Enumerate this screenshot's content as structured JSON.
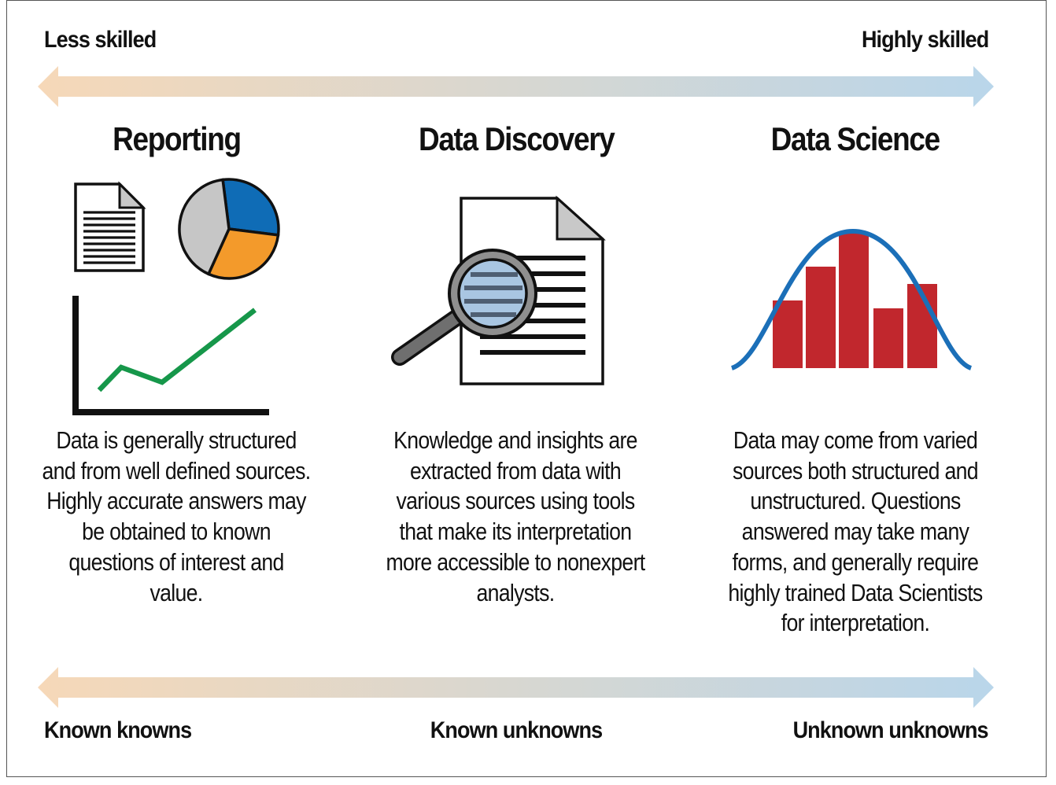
{
  "top_scale": {
    "left_label": "Less skilled",
    "right_label": "Highly skilled"
  },
  "bottom_scale": {
    "left_label": "Known knowns",
    "center_label": "Known unknowns",
    "right_label": "Unknown unknowns"
  },
  "arrow_colors": {
    "start": "#f6d8b8",
    "end": "#b9d6ea"
  },
  "columns": [
    {
      "title": "Reporting",
      "description": "Data is generally structured and from well defined sources. Highly accurate answers may be obtained to known questions of interest and value.",
      "icons": [
        "document-icon",
        "pie-chart-icon",
        "line-chart-icon"
      ]
    },
    {
      "title": "Data Discovery",
      "description": "Knowledge and insights are extracted from data with various sources using tools that make its interpretation more accessible to nonexpert analysts.",
      "icons": [
        "magnified-document-icon"
      ]
    },
    {
      "title": "Data Science",
      "description": "Data may come from varied sources both structured and unstructured. Questions answered may take many forms, and generally require highly trained Data Scientists for interpretation.",
      "icons": [
        "histogram-bell-curve-icon"
      ]
    }
  ],
  "colors": {
    "pie_blue": "#0f6cb6",
    "pie_orange": "#f39a2b",
    "pie_gray": "#c6c6c6",
    "line_green": "#16974a",
    "bar_red": "#c1272d",
    "curve_blue": "#1b6fb8"
  }
}
